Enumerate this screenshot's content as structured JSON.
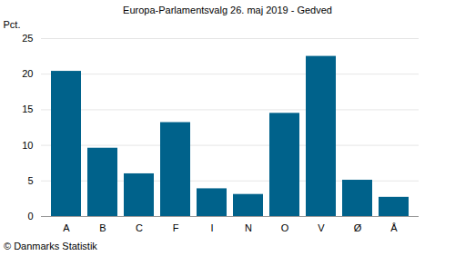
{
  "chart_data": {
    "type": "bar",
    "title": "Europa-Parlamentsvalg 26. maj 2019 - Gedved",
    "y_label": "Pct.",
    "caption": "© Danmarks Statistik",
    "categories": [
      "A",
      "B",
      "C",
      "F",
      "I",
      "N",
      "O",
      "V",
      "Ø",
      "Å"
    ],
    "values": [
      20.4,
      9.6,
      6.0,
      13.2,
      3.9,
      3.1,
      14.5,
      22.5,
      5.1,
      2.7
    ],
    "color": "#00628b",
    "ylim": [
      0,
      25
    ],
    "yticks": [
      0,
      5,
      10,
      15,
      20,
      25
    ],
    "grid": true
  }
}
